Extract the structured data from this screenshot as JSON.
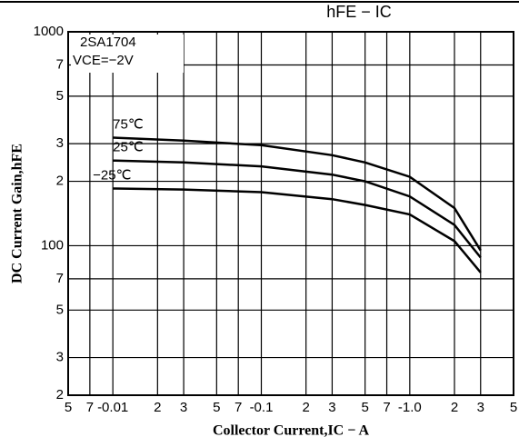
{
  "chart_data": {
    "type": "line",
    "title": "hFE − IC",
    "annotations": [
      "2SA1704",
      "VCE=−2V"
    ],
    "x_label": "Collector Current,IC − A",
    "y_label": "DC Current Gain,hFE",
    "x": [
      0.01,
      0.03,
      0.1,
      0.3,
      0.5,
      1.0,
      2,
      3
    ],
    "series": [
      {
        "name": "75℃",
        "color": "#000000",
        "values": [
          320,
          310,
          295,
          265,
          245,
          210,
          150,
          95
        ]
      },
      {
        "name": "25℃",
        "color": "#000000",
        "values": [
          250,
          245,
          235,
          215,
          200,
          170,
          125,
          88
        ]
      },
      {
        "name": "−25℃",
        "color": "#000000",
        "values": [
          185,
          183,
          178,
          165,
          155,
          140,
          105,
          75
        ]
      }
    ],
    "xlim": [
      0.005,
      5
    ],
    "ylim": [
      20,
      1000
    ],
    "xlog": true,
    "ylog": true,
    "grid": true,
    "xticks": [
      {
        "value": 0.005,
        "label": "5"
      },
      {
        "value": 0.007,
        "label": "7"
      },
      {
        "value": 0.01,
        "label": "-0.01"
      },
      {
        "value": 0.02,
        "label": "2"
      },
      {
        "value": 0.03,
        "label": "3"
      },
      {
        "value": 0.05,
        "label": "5"
      },
      {
        "value": 0.07,
        "label": "7"
      },
      {
        "value": 0.1,
        "label": "-0.1"
      },
      {
        "value": 0.2,
        "label": "2"
      },
      {
        "value": 0.3,
        "label": "3"
      },
      {
        "value": 0.5,
        "label": "5"
      },
      {
        "value": 0.7,
        "label": "7"
      },
      {
        "value": 1.0,
        "label": "-1.0"
      },
      {
        "value": 2,
        "label": "2"
      },
      {
        "value": 3,
        "label": "3"
      },
      {
        "value": 5,
        "label": "5"
      }
    ],
    "yticks": [
      {
        "value": 20,
        "label": "2"
      },
      {
        "value": 30,
        "label": "3"
      },
      {
        "value": 50,
        "label": "5"
      },
      {
        "value": 70,
        "label": "7"
      },
      100,
      {
        "value": 200,
        "label": "2"
      },
      {
        "value": 300,
        "label": "3"
      },
      {
        "value": 500,
        "label": "5"
      },
      {
        "value": 700,
        "label": "7"
      },
      1000
    ]
  }
}
